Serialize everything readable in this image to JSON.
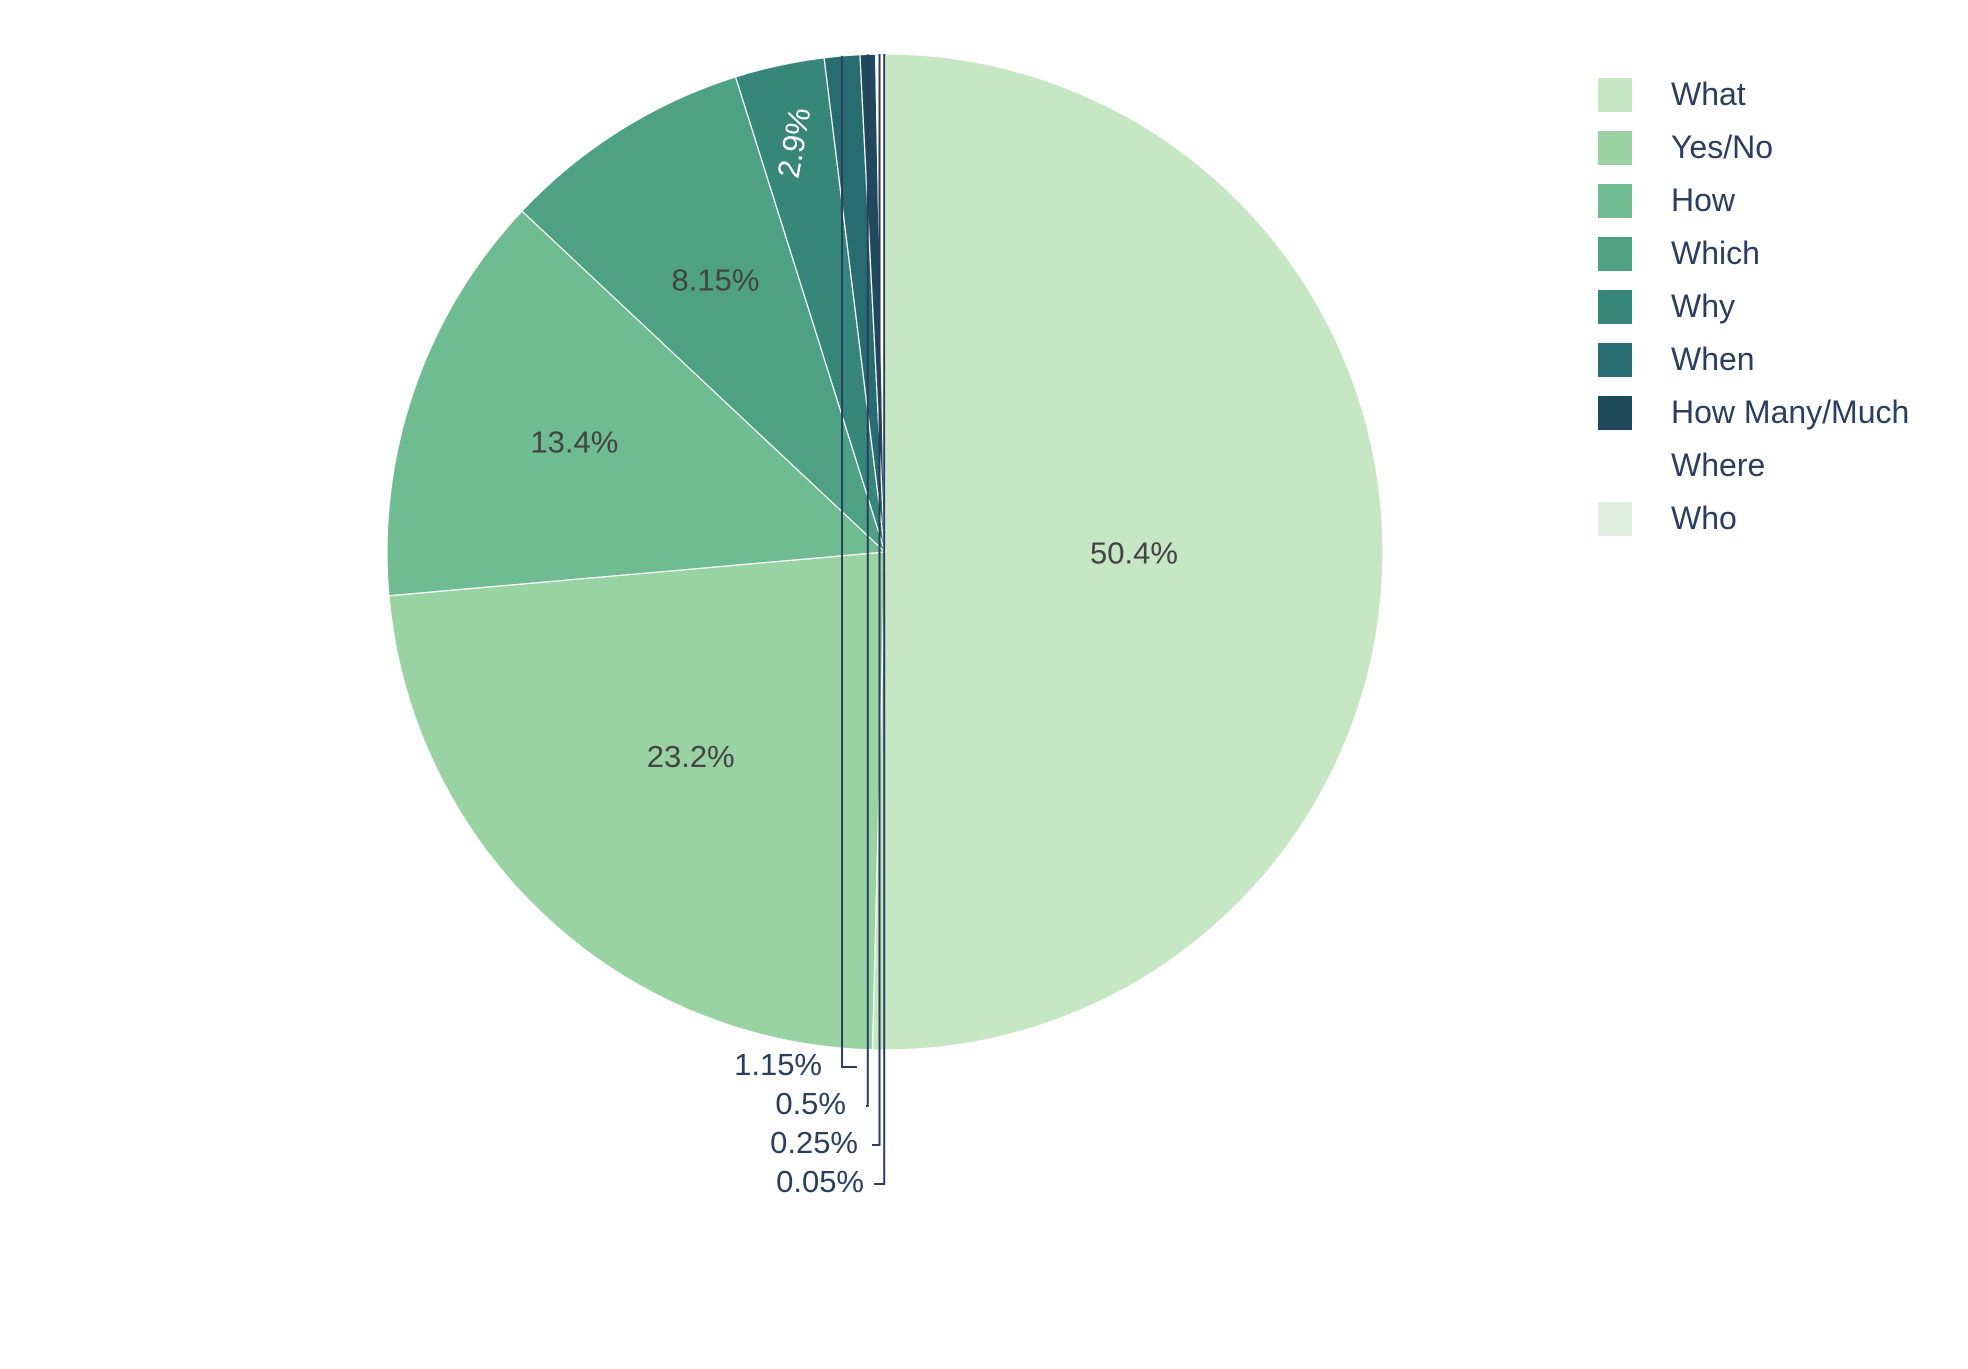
{
  "chart_data": {
    "type": "pie",
    "legend_placement": "top-right",
    "slices": [
      {
        "name": "What",
        "value": 50.4,
        "label": "50.4%",
        "color": "#c7e6c4"
      },
      {
        "name": "Yes/No",
        "value": 23.2,
        "label": "23.2%",
        "color": "#99d3a4"
      },
      {
        "name": "How",
        "value": 13.4,
        "label": "13.4%",
        "color": "#6fbc91"
      },
      {
        "name": "Which",
        "value": 8.15,
        "label": "8.15%",
        "color": "#4ea283"
      },
      {
        "name": "Why",
        "value": 2.9,
        "label": "2.9%",
        "color": "#36867a"
      },
      {
        "name": "When",
        "value": 1.15,
        "label": "1.15%",
        "color": "#276c6f"
      },
      {
        "name": "How Many/Much",
        "value": 0.5,
        "label": "0.5%",
        "color": "#1f4a5c"
      },
      {
        "name": "Where",
        "value": 0.25,
        "label": "0.25%",
        "color": "#ffffff"
      },
      {
        "name": "Who",
        "value": 0.05,
        "label": "0.05%",
        "color": "#dff0e3"
      }
    ]
  }
}
